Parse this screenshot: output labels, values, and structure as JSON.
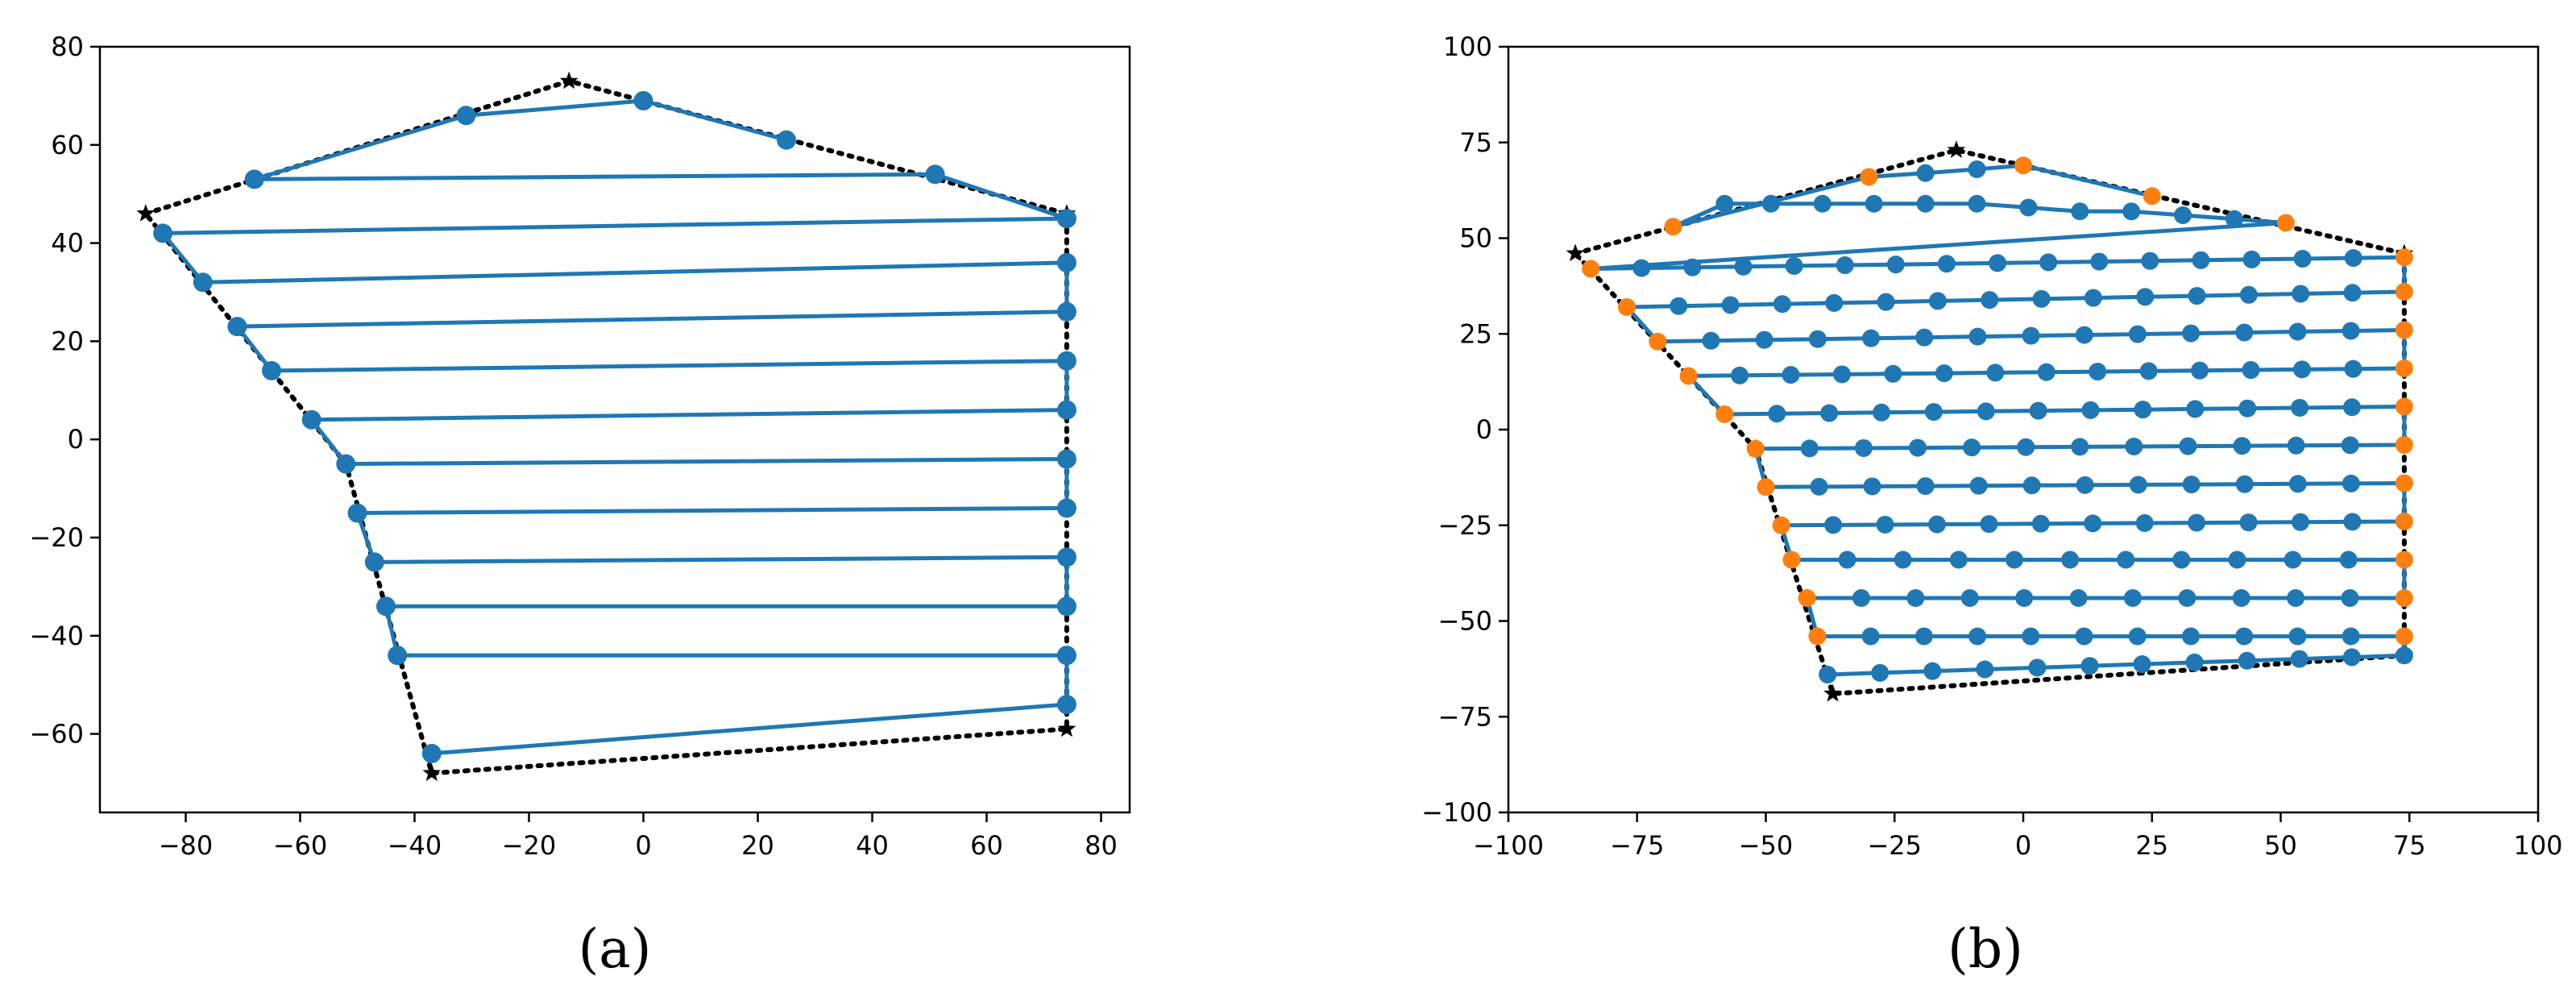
{
  "chart_data": [
    {
      "type": "line",
      "panel_label": "(a)",
      "xlim": [
        -95,
        85
      ],
      "ylim": [
        -76,
        80
      ],
      "xticks": [
        -80,
        -60,
        -40,
        -20,
        0,
        20,
        40,
        60,
        80
      ],
      "yticks": [
        -60,
        -40,
        -20,
        0,
        20,
        40,
        60,
        80
      ],
      "boundary": [
        [
          -87,
          46
        ],
        [
          -13,
          73
        ],
        [
          74,
          46
        ],
        [
          74,
          -59
        ],
        [
          -37,
          -68
        ],
        [
          -52,
          -5
        ],
        [
          -87,
          46
        ]
      ],
      "point_color": "#1f77b4",
      "line_color": "#1f77b4",
      "series": [
        {
          "points": [
            [
              -37,
              -64
            ],
            [
              74,
              -54
            ],
            [
              74,
              -44
            ],
            [
              -43,
              -44
            ],
            [
              -45,
              -34
            ],
            [
              74,
              -34
            ],
            [
              74,
              -24
            ],
            [
              -47,
              -25
            ],
            [
              -50,
              -15
            ],
            [
              74,
              -14
            ],
            [
              74,
              -4
            ],
            [
              -52,
              -5
            ],
            [
              -58,
              4
            ],
            [
              74,
              6
            ],
            [
              74,
              16
            ],
            [
              -65,
              14
            ],
            [
              -71,
              23
            ],
            [
              74,
              26
            ],
            [
              74,
              36
            ],
            [
              -77,
              32
            ],
            [
              -84,
              42
            ],
            [
              74,
              45
            ],
            [
              51,
              54
            ],
            [
              -68,
              53
            ],
            [
              -31,
              66
            ],
            [
              0,
              69
            ],
            [
              25,
              61
            ]
          ]
        }
      ]
    },
    {
      "type": "line",
      "panel_label": "(b)",
      "xlim": [
        -100,
        100
      ],
      "ylim": [
        -100,
        100
      ],
      "xticks": [
        -100,
        -75,
        -50,
        -25,
        0,
        25,
        50,
        75,
        100
      ],
      "yticks": [
        -100,
        -75,
        -50,
        -25,
        0,
        25,
        50,
        75,
        100
      ],
      "boundary": [
        [
          -87,
          46
        ],
        [
          -13,
          73
        ],
        [
          74,
          46
        ],
        [
          74,
          -59
        ],
        [
          -37,
          -69
        ],
        [
          -52,
          -5
        ],
        [
          -87,
          46
        ]
      ],
      "point_color": "#1f77b4",
      "edge_point_color": "#ff7f0e",
      "line_color": "#1f77b4",
      "rows": [
        {
          "y_left": -64,
          "y_right": -59,
          "x_left": -38,
          "x_right": 74,
          "count": 12
        },
        {
          "y_left": -54,
          "y_right": -54,
          "x_left": -40,
          "x_right": 74,
          "count": 12
        },
        {
          "y_left": -44,
          "y_right": -44,
          "x_left": -42,
          "x_right": 74,
          "count": 12
        },
        {
          "y_left": -34,
          "y_right": -34,
          "x_left": -45,
          "x_right": 74,
          "count": 12
        },
        {
          "y_left": -25,
          "y_right": -24,
          "x_left": -47,
          "x_right": 74,
          "count": 13
        },
        {
          "y_left": -15,
          "y_right": -14,
          "x_left": -50,
          "x_right": 74,
          "count": 13
        },
        {
          "y_left": -5,
          "y_right": -4,
          "x_left": -52,
          "x_right": 74,
          "count": 13
        },
        {
          "y_left": 4,
          "y_right": 6,
          "x_left": -58,
          "x_right": 74,
          "count": 14
        },
        {
          "y_left": 14,
          "y_right": 16,
          "x_left": -65,
          "x_right": 74,
          "count": 15
        },
        {
          "y_left": 23,
          "y_right": 26,
          "x_left": -71,
          "x_right": 74,
          "count": 15
        },
        {
          "y_left": 32,
          "y_right": 36,
          "x_left": -77,
          "x_right": 74,
          "count": 16
        },
        {
          "y_left": 42,
          "y_right": 45,
          "x_left": -84,
          "x_right": 74,
          "count": 17
        }
      ],
      "top_points": [
        [
          51,
          54
        ],
        [
          41,
          55
        ],
        [
          31,
          56
        ],
        [
          21,
          57
        ],
        [
          11,
          57
        ],
        [
          1,
          58
        ],
        [
          -9,
          59
        ],
        [
          -19,
          59
        ],
        [
          -29,
          59
        ],
        [
          -39,
          59
        ],
        [
          -49,
          59
        ],
        [
          -58,
          59
        ],
        [
          -68,
          53
        ],
        [
          -30,
          66
        ],
        [
          -19,
          67
        ],
        [
          -9,
          68
        ],
        [
          0,
          69
        ],
        [
          25,
          61
        ]
      ]
    }
  ]
}
